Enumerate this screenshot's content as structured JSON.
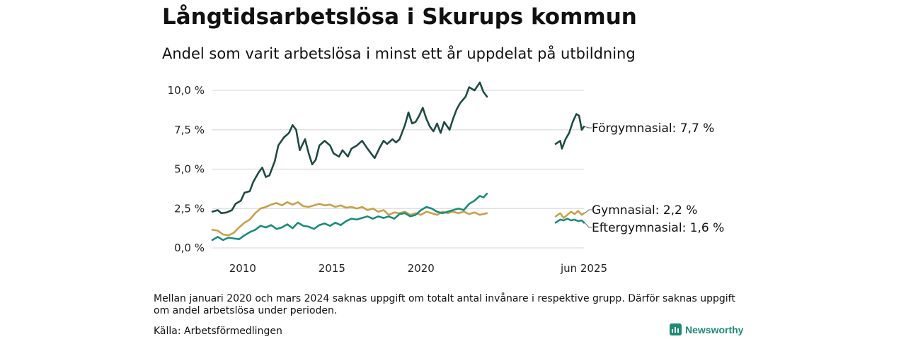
{
  "title": "Långtidsarbetslösa i Skurups kommun",
  "subtitle": "Andel som varit arbetslösa i minst ett år uppdelat på utbildning",
  "note": "Mellan januari 2020 och mars 2024 saknas uppgift om totalt antal invånare i respektive grupp. Därför saknas uppgift om andel arbetslösa under perioden.",
  "source": "Källa: Arbetsförmedlingen",
  "brand": "Newsworthy",
  "chart_data": {
    "type": "line",
    "title": "Långtidsarbetslösa i Skurups kommun",
    "subtitle": "Andel som varit arbetslösa i minst ett år uppdelat på utbildning",
    "xlabel": "",
    "ylabel": "",
    "ylim": [
      0,
      10.5
    ],
    "y_ticks": [
      0,
      2.5,
      5.0,
      7.5,
      10.0
    ],
    "y_tick_labels": [
      "0,0 %",
      "2,5 %",
      "5,0 %",
      "7,5 %",
      "10,0 %"
    ],
    "x_ticks": [
      2010,
      2015,
      2020
    ],
    "x_tick_labels": [
      "2010",
      "2015",
      "2020"
    ],
    "x_end_label": "jun 2025",
    "grid": "horizontal",
    "gap_note": "2020–2024 saknas",
    "series": [
      {
        "name": "Förgymnasial",
        "end_label": "Förgymnasial: 7,7 %",
        "color": "#1f4a44",
        "points": [
          [
            2008.3,
            2.3
          ],
          [
            2008.6,
            2.4
          ],
          [
            2008.8,
            2.2
          ],
          [
            2009.1,
            2.25
          ],
          [
            2009.4,
            2.4
          ],
          [
            2009.6,
            2.8
          ],
          [
            2009.9,
            3.0
          ],
          [
            2010.1,
            3.5
          ],
          [
            2010.4,
            3.6
          ],
          [
            2010.6,
            4.2
          ],
          [
            2010.9,
            4.8
          ],
          [
            2011.1,
            5.1
          ],
          [
            2011.3,
            4.5
          ],
          [
            2011.5,
            4.6
          ],
          [
            2011.8,
            5.5
          ],
          [
            2012.0,
            6.5
          ],
          [
            2012.3,
            7.0
          ],
          [
            2012.6,
            7.3
          ],
          [
            2012.8,
            7.8
          ],
          [
            2013.0,
            7.5
          ],
          [
            2013.2,
            6.2
          ],
          [
            2013.5,
            6.9
          ],
          [
            2013.7,
            6.0
          ],
          [
            2013.9,
            5.3
          ],
          [
            2014.1,
            5.6
          ],
          [
            2014.3,
            6.5
          ],
          [
            2014.6,
            6.8
          ],
          [
            2014.9,
            6.5
          ],
          [
            2015.1,
            6.0
          ],
          [
            2015.4,
            5.8
          ],
          [
            2015.6,
            6.2
          ],
          [
            2015.9,
            5.8
          ],
          [
            2016.1,
            6.3
          ],
          [
            2016.4,
            6.5
          ],
          [
            2016.7,
            6.8
          ],
          [
            2017.0,
            6.3
          ],
          [
            2017.2,
            6.0
          ],
          [
            2017.4,
            5.7
          ],
          [
            2017.7,
            6.4
          ],
          [
            2017.9,
            6.8
          ],
          [
            2018.1,
            6.6
          ],
          [
            2018.4,
            6.9
          ],
          [
            2018.6,
            6.7
          ],
          [
            2018.8,
            6.9
          ],
          [
            2019.1,
            7.8
          ],
          [
            2019.3,
            8.6
          ],
          [
            2019.5,
            7.9
          ],
          [
            2019.7,
            8.0
          ],
          [
            2019.9,
            8.4
          ],
          [
            2020.1,
            8.9
          ],
          [
            2020.3,
            8.2
          ],
          [
            2020.5,
            7.7
          ],
          [
            2020.7,
            7.4
          ],
          [
            2020.9,
            7.9
          ],
          [
            2021.1,
            7.3
          ],
          [
            2021.3,
            8.0
          ],
          [
            2021.6,
            7.5
          ],
          [
            2021.8,
            8.2
          ],
          [
            2022.0,
            8.8
          ],
          [
            2022.2,
            9.2
          ],
          [
            2022.5,
            9.6
          ],
          [
            2022.7,
            10.2
          ],
          [
            2023.0,
            10.0
          ],
          [
            2023.3,
            10.5
          ],
          [
            2023.5,
            9.9
          ],
          [
            2023.7,
            9.6
          ],
          null,
          [
            2024.25,
            6.6
          ],
          [
            2024.5,
            6.8
          ],
          [
            2024.6,
            6.3
          ],
          [
            2024.8,
            6.9
          ],
          [
            2025.0,
            7.3
          ],
          [
            2025.2,
            8.0
          ],
          [
            2025.4,
            8.5
          ],
          [
            2025.55,
            8.4
          ],
          [
            2025.7,
            7.5
          ],
          [
            2025.82,
            7.7
          ]
        ]
      },
      {
        "name": "Gymnasial",
        "end_label": "Gymnasial: 2,2 %",
        "color": "#c8a04a",
        "points": [
          [
            2008.3,
            1.15
          ],
          [
            2008.6,
            1.1
          ],
          [
            2008.9,
            0.85
          ],
          [
            2009.2,
            0.8
          ],
          [
            2009.5,
            0.95
          ],
          [
            2009.8,
            1.3
          ],
          [
            2010.1,
            1.6
          ],
          [
            2010.4,
            1.8
          ],
          [
            2010.7,
            2.2
          ],
          [
            2011.0,
            2.5
          ],
          [
            2011.3,
            2.6
          ],
          [
            2011.6,
            2.75
          ],
          [
            2011.9,
            2.85
          ],
          [
            2012.2,
            2.7
          ],
          [
            2012.5,
            2.9
          ],
          [
            2012.8,
            2.75
          ],
          [
            2013.1,
            2.9
          ],
          [
            2013.4,
            2.65
          ],
          [
            2013.7,
            2.6
          ],
          [
            2014.0,
            2.7
          ],
          [
            2014.3,
            2.8
          ],
          [
            2014.6,
            2.7
          ],
          [
            2014.9,
            2.75
          ],
          [
            2015.2,
            2.6
          ],
          [
            2015.5,
            2.7
          ],
          [
            2015.8,
            2.55
          ],
          [
            2016.1,
            2.6
          ],
          [
            2016.4,
            2.5
          ],
          [
            2016.7,
            2.6
          ],
          [
            2017.0,
            2.4
          ],
          [
            2017.3,
            2.5
          ],
          [
            2017.6,
            2.3
          ],
          [
            2017.9,
            2.4
          ],
          [
            2018.2,
            2.1
          ],
          [
            2018.5,
            2.25
          ],
          [
            2018.8,
            2.2
          ],
          [
            2019.1,
            2.3
          ],
          [
            2019.4,
            2.1
          ],
          [
            2019.7,
            2.2
          ],
          [
            2020.0,
            2.1
          ],
          [
            2020.3,
            2.3
          ],
          [
            2020.6,
            2.2
          ],
          [
            2020.9,
            2.1
          ],
          [
            2021.2,
            2.3
          ],
          [
            2021.5,
            2.2
          ],
          [
            2021.8,
            2.3
          ],
          [
            2022.1,
            2.2
          ],
          [
            2022.4,
            2.3
          ],
          [
            2022.7,
            2.15
          ],
          [
            2023.0,
            2.25
          ],
          [
            2023.3,
            2.1
          ],
          [
            2023.7,
            2.2
          ],
          null,
          [
            2024.25,
            2.0
          ],
          [
            2024.5,
            2.2
          ],
          [
            2024.7,
            1.9
          ],
          [
            2024.9,
            2.1
          ],
          [
            2025.1,
            2.3
          ],
          [
            2025.3,
            2.15
          ],
          [
            2025.5,
            2.35
          ],
          [
            2025.7,
            2.1
          ],
          [
            2025.82,
            2.2
          ]
        ]
      },
      {
        "name": "Eftergymnasial",
        "end_label": "Eftergymnasial: 1,6 %",
        "color": "#1a8c7c",
        "points": [
          [
            2008.3,
            0.5
          ],
          [
            2008.6,
            0.7
          ],
          [
            2008.9,
            0.5
          ],
          [
            2009.2,
            0.65
          ],
          [
            2009.5,
            0.6
          ],
          [
            2009.8,
            0.55
          ],
          [
            2010.1,
            0.8
          ],
          [
            2010.4,
            1.0
          ],
          [
            2010.7,
            1.15
          ],
          [
            2011.0,
            1.4
          ],
          [
            2011.3,
            1.3
          ],
          [
            2011.6,
            1.45
          ],
          [
            2011.9,
            1.2
          ],
          [
            2012.2,
            1.3
          ],
          [
            2012.5,
            1.5
          ],
          [
            2012.8,
            1.25
          ],
          [
            2013.1,
            1.6
          ],
          [
            2013.4,
            1.4
          ],
          [
            2013.7,
            1.35
          ],
          [
            2014.0,
            1.2
          ],
          [
            2014.3,
            1.45
          ],
          [
            2014.6,
            1.55
          ],
          [
            2014.9,
            1.4
          ],
          [
            2015.2,
            1.6
          ],
          [
            2015.5,
            1.45
          ],
          [
            2015.8,
            1.7
          ],
          [
            2016.1,
            1.85
          ],
          [
            2016.4,
            1.8
          ],
          [
            2016.7,
            1.9
          ],
          [
            2017.0,
            2.0
          ],
          [
            2017.3,
            1.85
          ],
          [
            2017.6,
            2.0
          ],
          [
            2017.9,
            1.9
          ],
          [
            2018.2,
            2.0
          ],
          [
            2018.5,
            1.85
          ],
          [
            2018.8,
            2.15
          ],
          [
            2019.1,
            2.2
          ],
          [
            2019.4,
            2.0
          ],
          [
            2019.7,
            2.1
          ],
          [
            2020.0,
            2.4
          ],
          [
            2020.3,
            2.6
          ],
          [
            2020.6,
            2.5
          ],
          [
            2020.9,
            2.3
          ],
          [
            2021.2,
            2.2
          ],
          [
            2021.5,
            2.3
          ],
          [
            2021.8,
            2.4
          ],
          [
            2022.1,
            2.5
          ],
          [
            2022.4,
            2.4
          ],
          [
            2022.7,
            2.8
          ],
          [
            2023.0,
            3.0
          ],
          [
            2023.3,
            3.3
          ],
          [
            2023.5,
            3.2
          ],
          [
            2023.7,
            3.45
          ],
          null,
          [
            2024.25,
            1.6
          ],
          [
            2024.5,
            1.8
          ],
          [
            2024.7,
            1.75
          ],
          [
            2024.9,
            1.85
          ],
          [
            2025.1,
            1.75
          ],
          [
            2025.3,
            1.8
          ],
          [
            2025.5,
            1.7
          ],
          [
            2025.7,
            1.75
          ],
          [
            2025.82,
            1.6
          ]
        ]
      }
    ]
  }
}
